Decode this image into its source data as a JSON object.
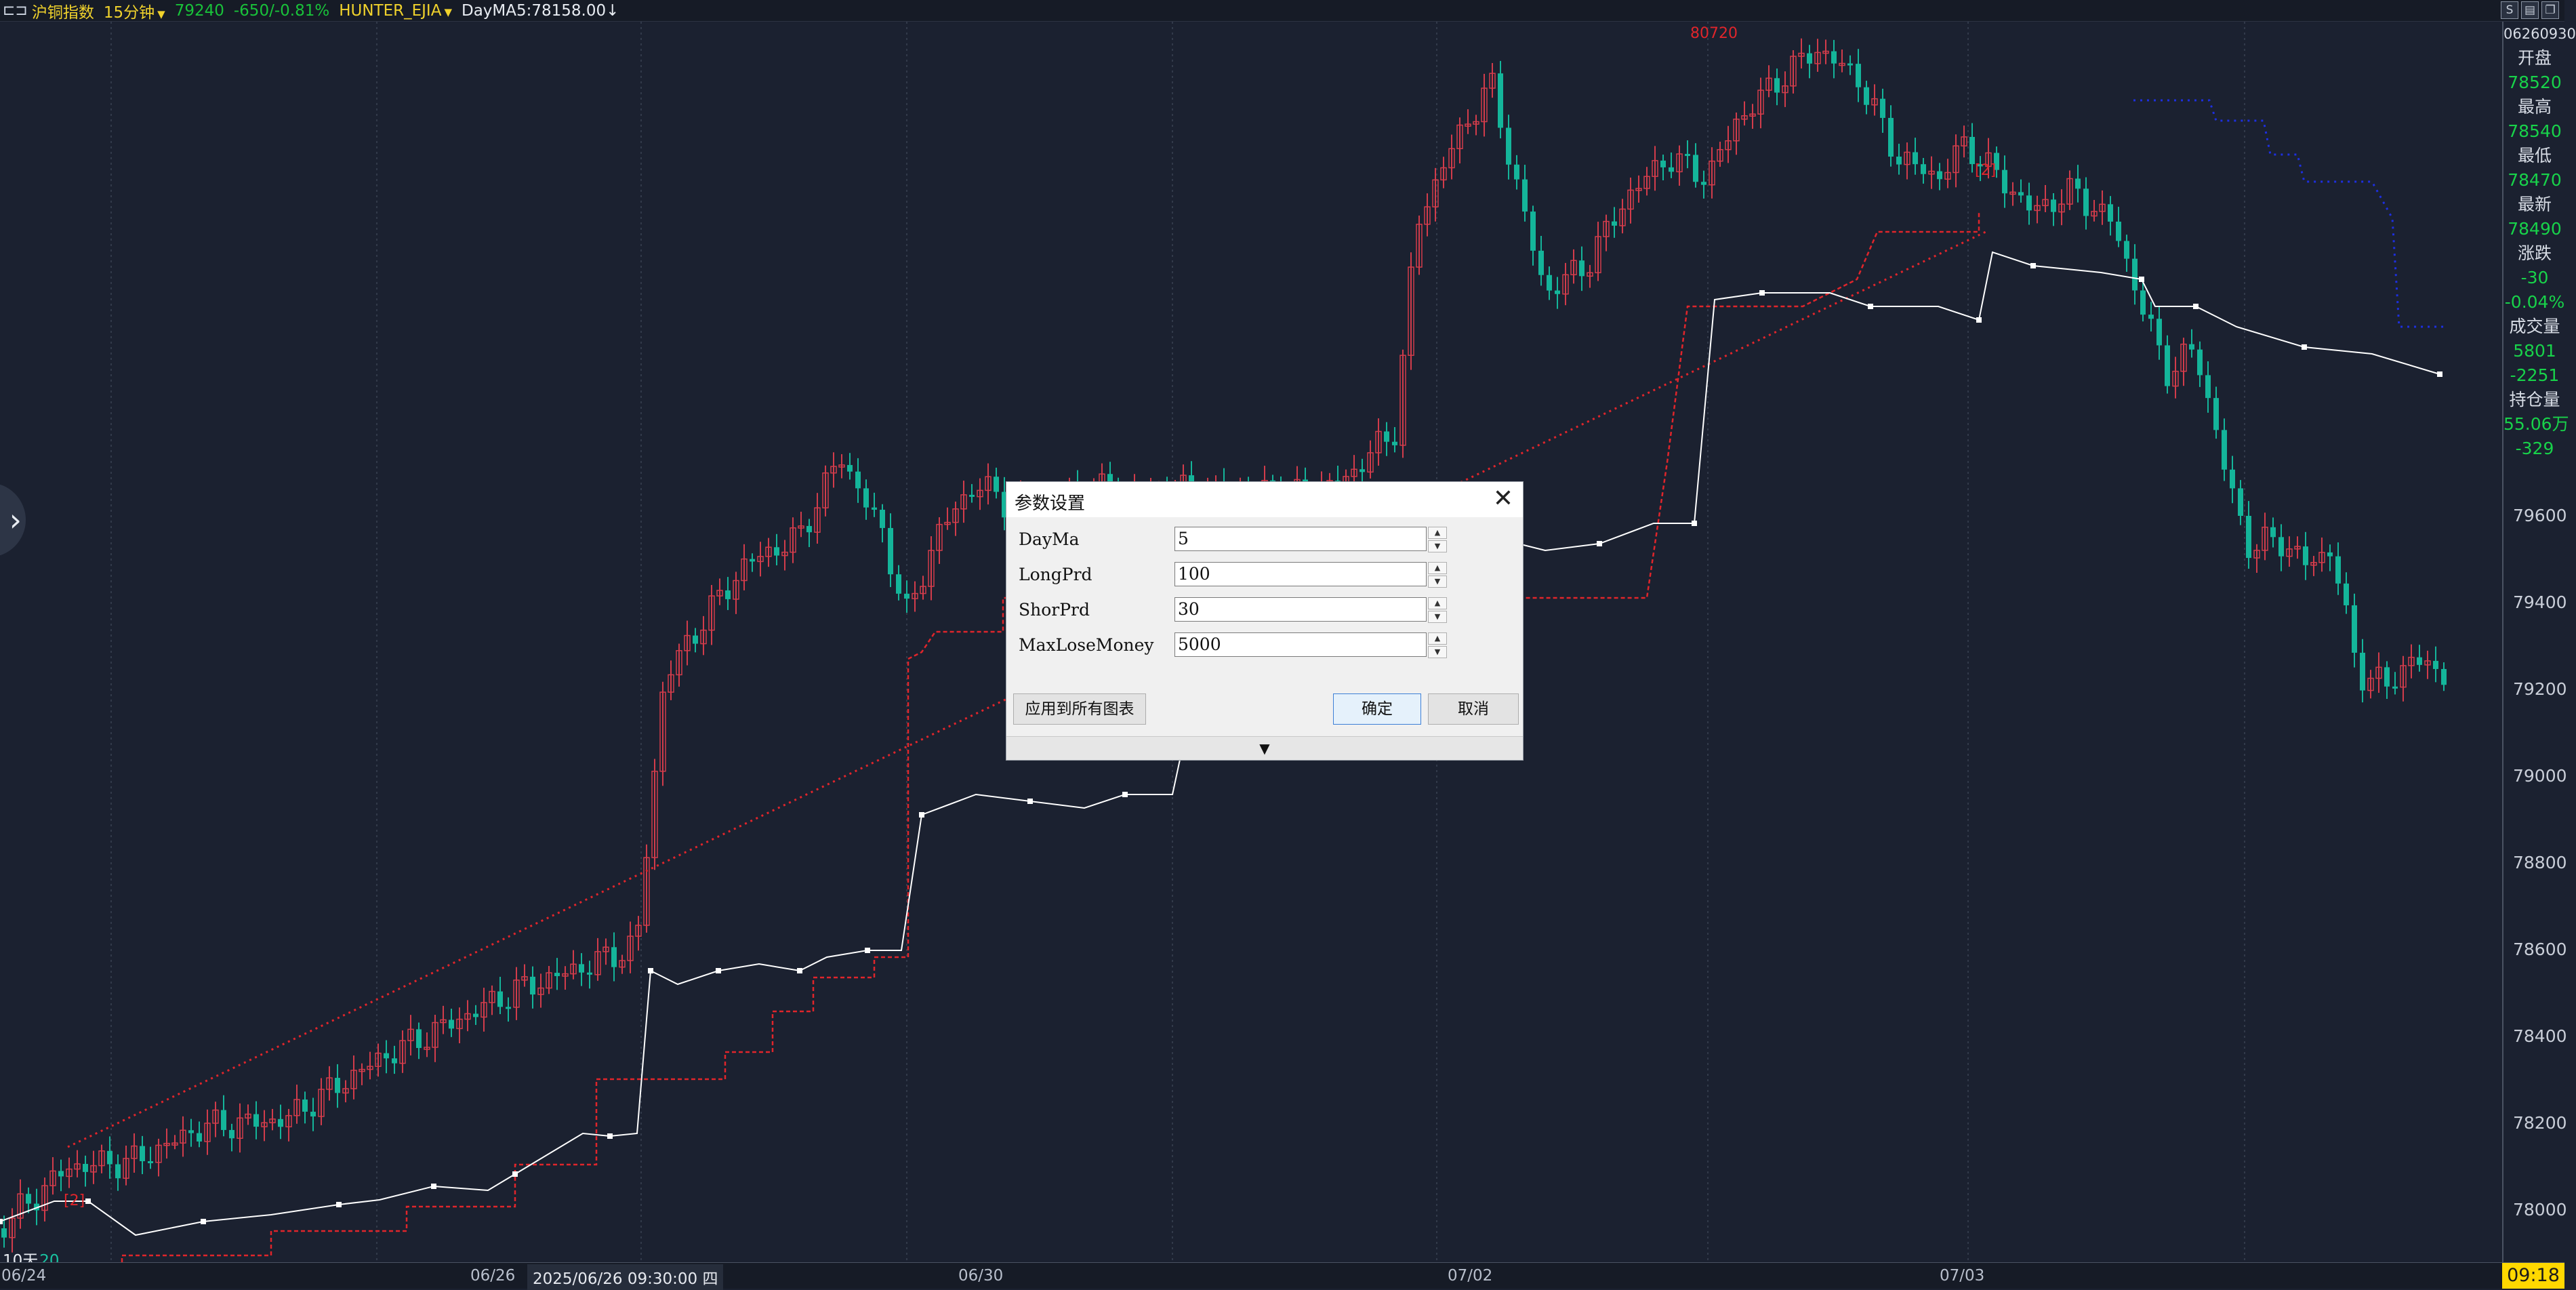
{
  "topbar": {
    "symbol_icon": "compare-icon",
    "symbol": "沪铜指数",
    "period": "15分钟",
    "price": "79240",
    "change": "-650/-0.81%",
    "strategy": "HUNTER_EJIA",
    "indicator": "DayMA5:78158.00↓"
  },
  "right_panel": {
    "header": "06260930",
    "items": [
      {
        "label": "开盘",
        "value": "78520"
      },
      {
        "label": "最高",
        "value": "78540"
      },
      {
        "label": "最低",
        "value": "78470"
      },
      {
        "label": "最新",
        "value": "78490"
      },
      {
        "label": "涨跌",
        "value": "-30"
      },
      {
        "label": "",
        "value": "-0.04%"
      },
      {
        "label": "成交量",
        "value": "5801"
      },
      {
        "label": "",
        "value": "-2251"
      },
      {
        "label": "持仓量",
        "value": "55.06万"
      },
      {
        "label": "",
        "value": "-329"
      }
    ],
    "price_ticks": [
      "79600",
      "79400",
      "79200",
      "79000",
      "78800",
      "78600",
      "78400",
      "78200",
      "78000"
    ]
  },
  "chart_labels": {
    "high_mark": "80720",
    "signal_label": "[2]",
    "ten_days": "10天",
    "ten_days_value": "20"
  },
  "x_axis": {
    "dates": [
      "06/24",
      "06/26",
      "06/30",
      "07/02",
      "07/03"
    ],
    "cursor_date": "2025/06/26 09:30:00 四",
    "clock": "09:18"
  },
  "dialog": {
    "title": "参数设置",
    "params": [
      {
        "name": "DayMa",
        "value": "5"
      },
      {
        "name": "LongPrd",
        "value": "100"
      },
      {
        "name": "ShorPrd",
        "value": "30"
      },
      {
        "name": "MaxLoseMoney",
        "value": "5000"
      }
    ],
    "apply_all": "应用到所有图表",
    "ok": "确定",
    "cancel": "取消",
    "footer_arrow": "▼"
  },
  "colors": {
    "background": "#1b2130",
    "up_candle": "#d23c4b",
    "down_candle": "#14b59a",
    "trend_line": "#e0252b",
    "ma_line": "#ffffff",
    "stop_line": "#1d2fe0"
  }
}
